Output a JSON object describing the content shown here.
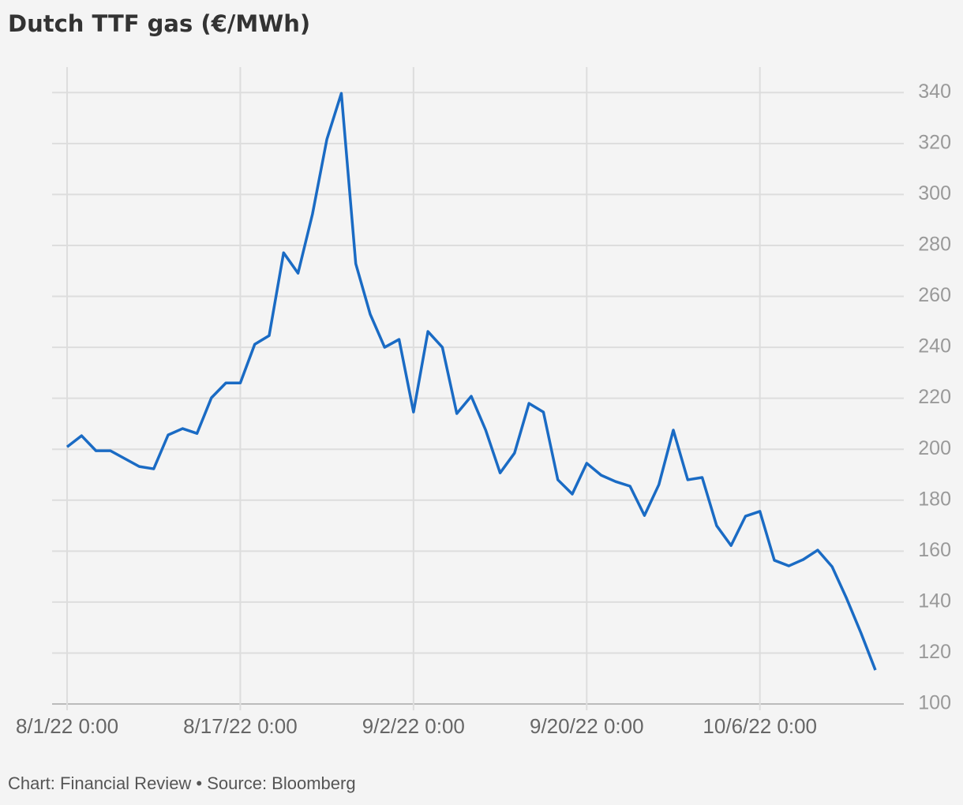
{
  "chart_data": {
    "type": "line",
    "title": "Dutch TTF gas (€/MWh)",
    "footer": "Chart: Financial Review • Source: Bloomberg",
    "categories": [
      "8/1/22 0:00",
      null,
      null,
      null,
      null,
      null,
      null,
      null,
      null,
      null,
      null,
      null,
      "8/17/22 0:00",
      null,
      null,
      null,
      null,
      null,
      null,
      null,
      null,
      null,
      null,
      null,
      "9/2/22 0:00",
      null,
      null,
      null,
      null,
      null,
      null,
      null,
      null,
      null,
      null,
      null,
      "9/20/22 0:00",
      null,
      null,
      null,
      null,
      null,
      null,
      null,
      null,
      null,
      null,
      null,
      "10/6/22 0:00",
      null,
      null,
      null,
      null,
      null,
      null,
      null,
      null
    ],
    "series": [
      {
        "name": "Dutch TTF gas",
        "color": "#1a6bc4",
        "values": [
          200.9,
          205.3,
          199.4,
          199.4,
          196.3,
          193.2,
          192.3,
          205.6,
          208.1,
          206.2,
          220.2,
          226,
          226,
          241.2,
          244.6,
          277.1,
          269.1,
          292.3,
          321.7,
          339.7,
          272.8,
          253,
          240,
          243.1,
          214.6,
          246.2,
          240,
          214,
          220.8,
          207.5,
          190.7,
          198.5,
          218,
          214.6,
          188,
          182.4,
          194.5,
          189.8,
          187.3,
          185.5,
          174,
          186.1,
          207.5,
          188,
          188.9,
          170,
          162.2,
          173.7,
          175.6,
          156.4,
          154.2,
          156.7,
          160.4,
          153.9,
          141.5,
          127.9,
          113.3
        ]
      }
    ],
    "ylim": [
      100,
      350
    ],
    "yticks": [
      100,
      120,
      140,
      160,
      180,
      200,
      220,
      240,
      260,
      280,
      300,
      320,
      340
    ],
    "grid": true
  }
}
